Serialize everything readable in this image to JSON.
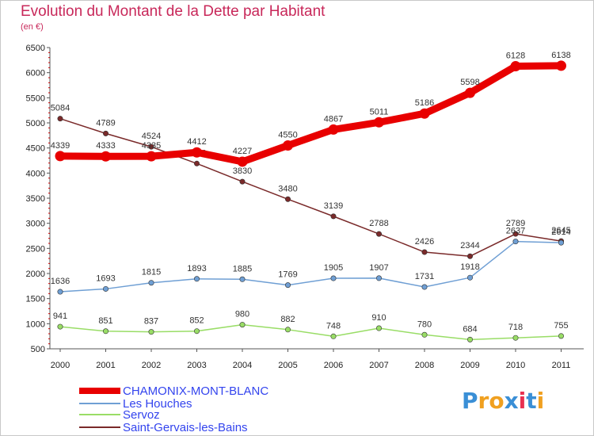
{
  "title": "Evolution du Montant de la Dette par Habitant",
  "subtitle": "(en €)",
  "logo": {
    "letters": [
      "P",
      "r",
      "o",
      "x",
      "i",
      "t",
      "i"
    ],
    "colors": [
      "#3a8fd6",
      "#f0a020",
      "#f0a020",
      "#3a8fd6",
      "#e83050",
      "#3a8fd6",
      "#f0a020"
    ]
  },
  "chart_data": {
    "type": "line",
    "title": "Evolution du Montant de la Dette par Habitant",
    "ylabel": "(en €)",
    "xlabel": "",
    "categories": [
      "2000",
      "2001",
      "2002",
      "2003",
      "2004",
      "2005",
      "2006",
      "2007",
      "2008",
      "2009",
      "2010",
      "2011"
    ],
    "ylim": [
      500,
      6500
    ],
    "yticks": [
      500,
      1000,
      1500,
      2000,
      2500,
      3000,
      3500,
      4000,
      4500,
      5000,
      5500,
      6000,
      6500
    ],
    "grid": false,
    "legend_position": "bottom",
    "series": [
      {
        "name": "CHAMONIX-MONT-BLANC",
        "color": "#e80000",
        "values": [
          4339,
          4333,
          4335,
          4412,
          4227,
          4550,
          4867,
          5011,
          5186,
          5598,
          6128,
          6138
        ]
      },
      {
        "name": "Les Houches",
        "color": "#6f9fd4",
        "values": [
          1636,
          1693,
          1815,
          1893,
          1885,
          1769,
          1905,
          1907,
          1731,
          1918,
          2637,
          2614
        ]
      },
      {
        "name": "Servoz",
        "color": "#99dd66",
        "values": [
          941,
          851,
          837,
          852,
          980,
          882,
          748,
          910,
          780,
          684,
          718,
          755
        ]
      },
      {
        "name": "Saint-Gervais-les-Bains",
        "color": "#7a2a2a",
        "values": [
          5084,
          4789,
          4524,
          4190,
          3830,
          3480,
          3139,
          2788,
          2426,
          2344,
          2789,
          2645
        ]
      }
    ]
  }
}
